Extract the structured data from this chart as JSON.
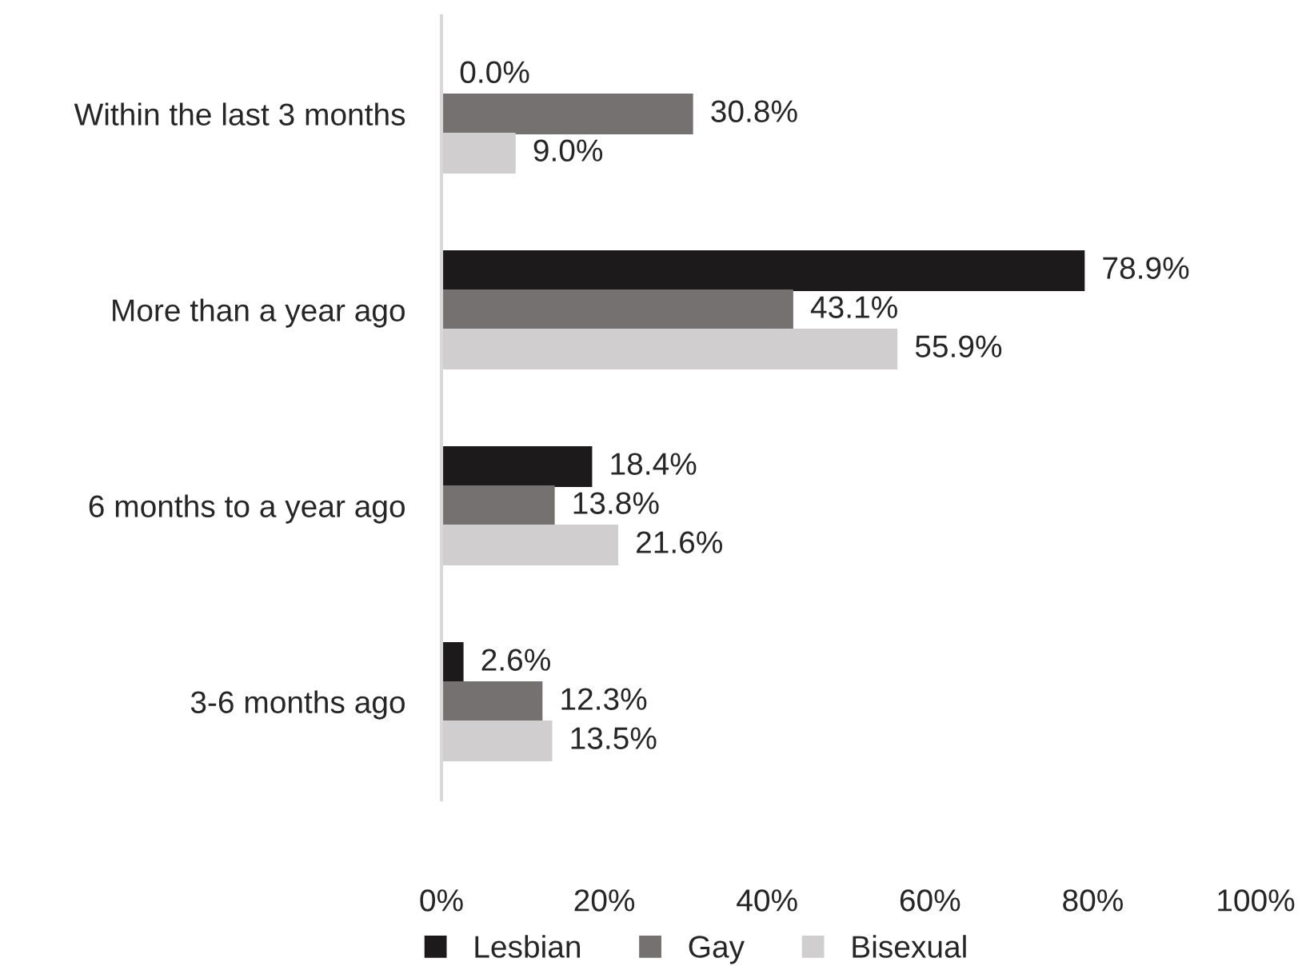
{
  "chart_data": {
    "type": "bar",
    "orientation": "horizontal",
    "categories": [
      "Within the last 3 months",
      "More than a year ago",
      "6 months to a year ago",
      "3-6 months ago"
    ],
    "series": [
      {
        "name": "Lesbian",
        "color": "#1c1a1b",
        "values": [
          0.0,
          78.9,
          18.4,
          2.6
        ],
        "value_labels": [
          "0.0%",
          "78.9%",
          "18.4%",
          "2.6%"
        ]
      },
      {
        "name": "Gay",
        "color": "#767171",
        "values": [
          30.8,
          43.1,
          13.8,
          12.3
        ],
        "value_labels": [
          "30.8%",
          "43.1%",
          "13.8%",
          "12.3%"
        ]
      },
      {
        "name": "Bisexual",
        "color": "#d0cece",
        "values": [
          9.0,
          55.9,
          21.6,
          13.5
        ],
        "value_labels": [
          "9.0%",
          "55.9%",
          "21.6%",
          "13.5%"
        ]
      }
    ],
    "xlim": [
      0,
      100
    ],
    "xticks": [
      {
        "value": 0,
        "label": "0%"
      },
      {
        "value": 20,
        "label": "20%"
      },
      {
        "value": 40,
        "label": "40%"
      },
      {
        "value": 60,
        "label": "60%"
      },
      {
        "value": 80,
        "label": "80%"
      },
      {
        "value": 100,
        "label": "100%"
      }
    ],
    "grid": false,
    "legend": "bottom"
  }
}
